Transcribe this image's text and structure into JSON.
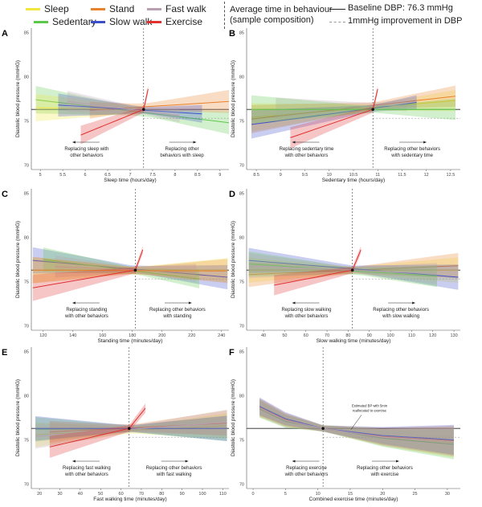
{
  "legend": {
    "behaviours": [
      {
        "label": "Sleep",
        "color": "#f2e640"
      },
      {
        "label": "Stand",
        "color": "#e8822c"
      },
      {
        "label": "Fast walk",
        "color": "#b8a0b0"
      },
      {
        "label": "Sedentary",
        "color": "#5cc84a"
      },
      {
        "label": "Slow walk",
        "color": "#3c4fc8"
      },
      {
        "label": "Exercise",
        "color": "#e03030"
      }
    ],
    "avg_line1": "Average time in behaviour",
    "avg_line2": "(sample composition)",
    "baseline_label": "Baseline DBP: 76.3 mmHg",
    "improvement_label": "1mmHg improvement in DBP"
  },
  "chart_data": [
    {
      "panel": "A",
      "type": "line",
      "xlabel": "Sleep time (hours/day)",
      "ylabel": "Diastolic blood pressure (mmHG)",
      "xlim": [
        4.8,
        9.2
      ],
      "ylim": [
        69.5,
        85.5
      ],
      "yticks": [
        70,
        75,
        80,
        85
      ],
      "xticks": [
        5,
        5.5,
        6,
        6.5,
        7,
        7.5,
        8,
        8.5,
        9
      ],
      "xticklabels": [
        "5",
        "5.5",
        "6",
        "6.5",
        "7",
        "7.5",
        "8",
        "8.5",
        "9"
      ],
      "avg_x": 7.3,
      "baseline": 76.3,
      "improvement": 75.3,
      "left_annotation": [
        "Replacing sleep with",
        "other behaviors"
      ],
      "right_annotation": [
        "Replacing other",
        "behaviors with sleep"
      ],
      "series": [
        {
          "name": "Sedentary",
          "x": [
            4.9,
            9.2
          ],
          "y": [
            77.4,
            74.8
          ]
        },
        {
          "name": "Sleep",
          "x": [
            4.9,
            7.3
          ],
          "y": [
            76.5,
            76.3
          ]
        },
        {
          "name": "Stand",
          "x": [
            6.1,
            9.2
          ],
          "y": [
            76.2,
            77.2
          ]
        },
        {
          "name": "Slow walk",
          "x": [
            5.4,
            8.6
          ],
          "y": [
            76.8,
            75.8
          ]
        },
        {
          "name": "Fast walk",
          "x": [
            5.6,
            8.1
          ],
          "y": [
            77.2,
            75.6
          ]
        },
        {
          "name": "Exercise",
          "x": [
            5.9,
            7.3,
            7.4
          ],
          "y": [
            73.4,
            76.3,
            78.6
          ]
        }
      ]
    },
    {
      "panel": "B",
      "type": "line",
      "xlabel": "Sedentary time (hours/day)",
      "ylabel": "Diastolic blood pressure (mmHG)",
      "xlim": [
        8.3,
        12.7
      ],
      "ylim": [
        69.5,
        85.5
      ],
      "yticks": [
        70,
        75,
        80,
        85
      ],
      "xticks": [
        8.5,
        9,
        9.5,
        10,
        10.5,
        11,
        11.5,
        12,
        12.5
      ],
      "xticklabels": [
        "8.5",
        "9",
        "9.5",
        "10",
        "10.5",
        "11",
        "11.5",
        "12",
        "12.5"
      ],
      "avg_x": 10.9,
      "baseline": 76.3,
      "improvement": 75.3,
      "left_annotation": [
        "Replacing sedentary time",
        "with other behaviors"
      ],
      "right_annotation": [
        "Replacing other behaviors",
        "with sedentary time"
      ],
      "series": [
        {
          "name": "Sleep",
          "x": [
            8.4,
            12.6
          ],
          "y": [
            75.4,
            77.3
          ]
        },
        {
          "name": "Stand",
          "x": [
            8.4,
            12.6
          ],
          "y": [
            75.2,
            77.8
          ]
        },
        {
          "name": "Slow walk",
          "x": [
            8.4,
            11.8
          ],
          "y": [
            74.6,
            77.1
          ]
        },
        {
          "name": "Fast walk",
          "x": [
            8.9,
            11.6
          ],
          "y": [
            76.3,
            76.8
          ]
        },
        {
          "name": "Sedentary",
          "x": [
            8.4,
            12.6
          ],
          "y": [
            76.3,
            76.3
          ]
        },
        {
          "name": "Exercise",
          "x": [
            9.2,
            10.9,
            11.0
          ],
          "y": [
            73.1,
            76.3,
            78.6
          ]
        }
      ]
    },
    {
      "panel": "C",
      "type": "line",
      "xlabel": "Standing time (minutes/day)",
      "ylabel": "Diastolic blood pressure (mmHG)",
      "xlim": [
        112,
        245
      ],
      "ylim": [
        69.5,
        85.5
      ],
      "yticks": [
        70,
        75,
        80,
        85
      ],
      "xticks": [
        120,
        140,
        160,
        180,
        200,
        220,
        240
      ],
      "xticklabels": [
        "120",
        "140",
        "160",
        "180",
        "200",
        "220",
        "240"
      ],
      "avg_x": 182,
      "baseline": 76.3,
      "improvement": 75.3,
      "left_annotation": [
        "Replacing standing",
        "with other behaviors"
      ],
      "right_annotation": [
        "Replacing other behaviors",
        "with standing"
      ],
      "series": [
        {
          "name": "Sleep",
          "x": [
            113,
            244
          ],
          "y": [
            76.3,
            76.3
          ]
        },
        {
          "name": "Slow walk",
          "x": [
            113,
            244
          ],
          "y": [
            77.4,
            75.5
          ]
        },
        {
          "name": "Sedentary",
          "x": [
            120,
            225
          ],
          "y": [
            77.5,
            75.3
          ]
        },
        {
          "name": "Fast walk",
          "x": [
            128,
            223
          ],
          "y": [
            76.7,
            76.0
          ]
        },
        {
          "name": "Stand",
          "x": [
            113,
            244
          ],
          "y": [
            76.3,
            76.2
          ]
        },
        {
          "name": "Exercise",
          "x": [
            113,
            182,
            187
          ],
          "y": [
            74.3,
            76.3,
            78.6
          ]
        }
      ]
    },
    {
      "panel": "D",
      "type": "line",
      "xlabel": "Slow walking time (minutes/day)",
      "ylabel": "Diastolic blood pressure (mmHG)",
      "xlim": [
        32,
        133
      ],
      "ylim": [
        69.5,
        85.5
      ],
      "yticks": [
        70,
        75,
        80,
        85
      ],
      "xticks": [
        40,
        50,
        60,
        70,
        80,
        90,
        100,
        110,
        120,
        130
      ],
      "xticklabels": [
        "40",
        "50",
        "60",
        "70",
        "80",
        "90",
        "100",
        "110",
        "120",
        "130"
      ],
      "avg_x": 82,
      "baseline": 76.3,
      "improvement": 75.3,
      "left_annotation": [
        "Replacing slow walking",
        "with other behaviors"
      ],
      "right_annotation": [
        "Replacing other behaviors",
        "with slow walking"
      ],
      "series": [
        {
          "name": "Sleep",
          "x": [
            33,
            132
          ],
          "y": [
            76.3,
            76.3
          ]
        },
        {
          "name": "Stand",
          "x": [
            33,
            132
          ],
          "y": [
            75.8,
            76.8
          ]
        },
        {
          "name": "Slow walk",
          "x": [
            33,
            132
          ],
          "y": [
            77.4,
            75.5
          ]
        },
        {
          "name": "Sedentary",
          "x": [
            33,
            122
          ],
          "y": [
            77.0,
            75.6
          ]
        },
        {
          "name": "Fast walk",
          "x": [
            33,
            122
          ],
          "y": [
            76.8,
            75.9
          ]
        },
        {
          "name": "Exercise",
          "x": [
            45,
            82,
            86
          ],
          "y": [
            74.6,
            76.3,
            78.6
          ]
        }
      ]
    },
    {
      "panel": "E",
      "type": "line",
      "xlabel": "Fast walking time (minutes/day)",
      "ylabel": "Diastolic blood pressure (mmHG)",
      "xlim": [
        16,
        113
      ],
      "ylim": [
        69.5,
        85.5
      ],
      "yticks": [
        70,
        75,
        80,
        85
      ],
      "xticks": [
        20,
        30,
        40,
        50,
        60,
        70,
        80,
        90,
        100,
        110
      ],
      "xticklabels": [
        "20",
        "30",
        "40",
        "50",
        "60",
        "70",
        "80",
        "90",
        "100",
        "110"
      ],
      "avg_x": 64,
      "baseline": 76.3,
      "improvement": 75.3,
      "left_annotation": [
        "Replacing fast walking",
        "with other behaviors"
      ],
      "right_annotation": [
        "Replacing other behaviors",
        "with fast walking"
      ],
      "series": [
        {
          "name": "Sleep",
          "x": [
            18,
            112
          ],
          "y": [
            75.6,
            76.6
          ]
        },
        {
          "name": "Sedentary",
          "x": [
            18,
            112
          ],
          "y": [
            76.2,
            76.3
          ]
        },
        {
          "name": "Stand",
          "x": [
            25,
            112
          ],
          "y": [
            75.9,
            76.9
          ]
        },
        {
          "name": "Slow walk",
          "x": [
            18,
            112
          ],
          "y": [
            76.3,
            76.3
          ]
        },
        {
          "name": "Fast walk",
          "x": [
            18,
            112
          ],
          "y": [
            75.4,
            77.0
          ]
        },
        {
          "name": "Exercise",
          "x": [
            25,
            64,
            72
          ],
          "y": [
            74.2,
            76.3,
            78.6
          ]
        }
      ]
    },
    {
      "panel": "F",
      "type": "line",
      "xlabel": "Combined exercise time (minutes/day)",
      "ylabel": "Diastolic blood pressure (mmHG)",
      "xlim": [
        -1,
        32
      ],
      "ylim": [
        69.5,
        85.5
      ],
      "yticks": [
        70,
        75,
        80,
        85
      ],
      "xticks": [
        0,
        5,
        10,
        15,
        20,
        25,
        30
      ],
      "xticklabels": [
        "0",
        "5",
        "10",
        "15",
        "20",
        "25",
        "30"
      ],
      "avg_x": 10.8,
      "baseline": 76.3,
      "improvement": 75.3,
      "left_annotation": [
        "Replacing exercise",
        "with other behaviors"
      ],
      "right_annotation": [
        "Replacing other behaviors",
        "with exercise"
      ],
      "point_annotation": [
        "Estimated BP with 5min",
        "reallocated to exercise"
      ],
      "series": [
        {
          "name": "Sleep",
          "x": [
            1,
            5,
            10.8,
            20,
            31
          ],
          "y": [
            78.6,
            77.2,
            76.3,
            75.3,
            74.7
          ]
        },
        {
          "name": "Sedentary",
          "x": [
            1,
            5,
            10.8,
            20,
            31
          ],
          "y": [
            78.5,
            77.1,
            76.3,
            75.2,
            74.5
          ]
        },
        {
          "name": "Stand",
          "x": [
            1,
            5,
            10.8,
            20,
            31
          ],
          "y": [
            78.7,
            77.3,
            76.3,
            75.4,
            74.9
          ]
        },
        {
          "name": "Slow walk",
          "x": [
            1,
            5,
            10.8,
            20,
            31
          ],
          "y": [
            78.8,
            77.4,
            76.3,
            75.5,
            75.0
          ]
        },
        {
          "name": "Fast walk",
          "x": [
            1,
            5,
            10.8,
            20,
            31
          ],
          "y": [
            78.6,
            77.2,
            76.3,
            75.3,
            74.8
          ]
        }
      ]
    }
  ]
}
